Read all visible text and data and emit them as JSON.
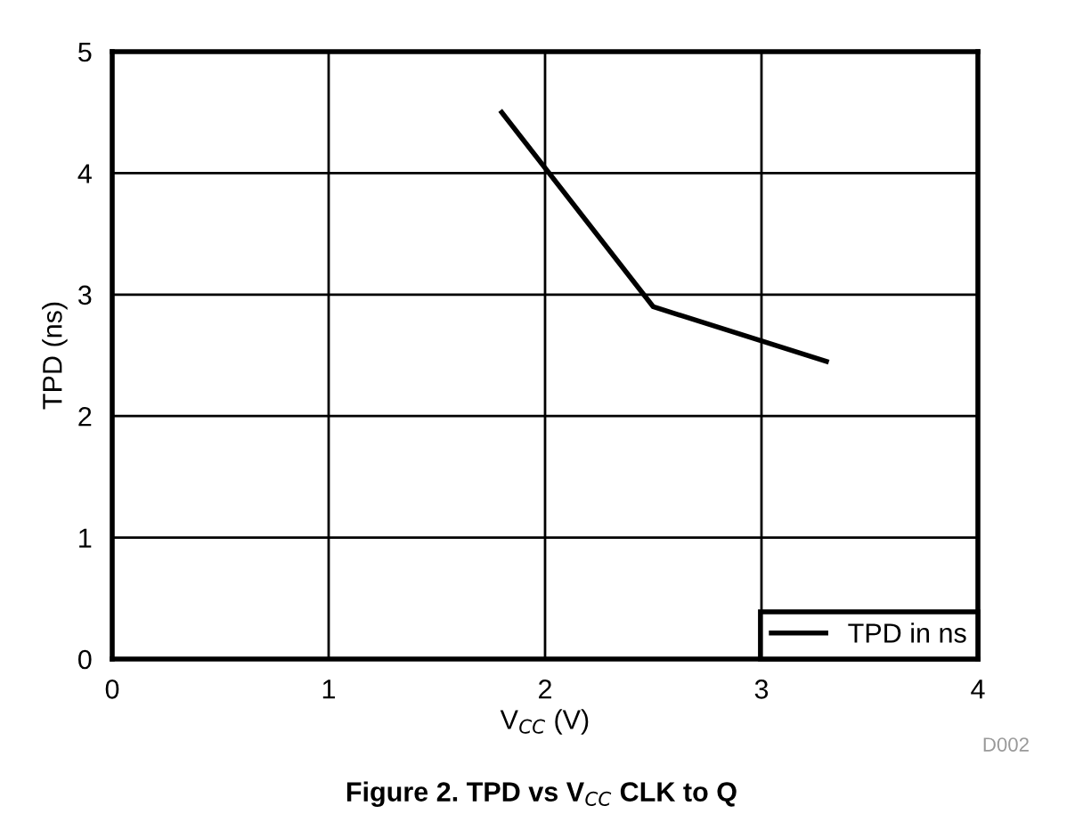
{
  "chart_data": {
    "type": "line",
    "title": "Figure 2. TPD vs V$_{CC}$ CLK to Q",
    "xlabel": "V$_{CC}$ (V)",
    "ylabel": "TPD (ns)",
    "annotations": [
      "D002"
    ],
    "series": [
      {
        "name": "TPD in ns",
        "color": "#000000",
        "x": [
          1.8,
          2.5,
          3.3
        ],
        "values": [
          4.5,
          2.9,
          2.45
        ]
      }
    ],
    "xlim": [
      0,
      4
    ],
    "xticks": [
      0,
      1,
      2,
      3,
      4
    ],
    "ylim": [
      0,
      5
    ],
    "yticks": [
      0,
      1,
      2,
      3,
      4,
      5
    ],
    "grid": true,
    "legend": "bottom right",
    "line_style": "solid"
  }
}
